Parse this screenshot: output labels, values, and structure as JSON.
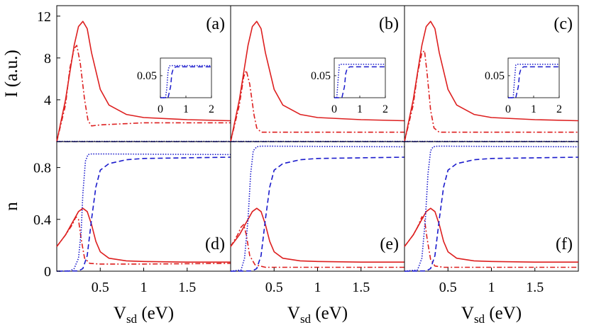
{
  "chart_data": [
    {
      "panel": "(a)",
      "type": "line",
      "ylabel": "I (a.u.)",
      "xlim": [
        0,
        2
      ],
      "ylim": [
        0,
        13
      ],
      "yticks": [
        "4",
        "8",
        "12"
      ],
      "series": [
        {
          "color": "#dd1f1f",
          "style": "solid",
          "x": [
            0,
            0.1,
            0.2,
            0.25,
            0.3,
            0.35,
            0.4,
            0.5,
            0.6,
            0.8,
            1.0,
            1.5,
            2.0
          ],
          "y": [
            0,
            4.0,
            9.2,
            11.0,
            11.5,
            10.8,
            8.5,
            5.0,
            3.5,
            2.6,
            2.3,
            2.1,
            2.0
          ]
        },
        {
          "color": "#dd1f1f",
          "style": "dash-dot",
          "x": [
            0,
            0.1,
            0.15,
            0.2,
            0.23,
            0.27,
            0.32,
            0.36,
            0.4,
            0.5,
            1.0,
            2.0
          ],
          "y": [
            0,
            3.5,
            7.0,
            8.9,
            9.2,
            7.5,
            4.0,
            2.0,
            1.5,
            1.6,
            1.8,
            1.8
          ]
        },
        {
          "color": "#1a1acc",
          "style": "dotted",
          "x": [
            0,
            2
          ],
          "y": [
            0.02,
            0.02
          ]
        },
        {
          "color": "#1a1acc",
          "style": "dashed",
          "x": [
            0,
            2
          ],
          "y": [
            0.0,
            0.0
          ]
        }
      ],
      "inset": {
        "xlim": [
          0,
          2
        ],
        "ylim": [
          0,
          0.09
        ],
        "xticks": [
          "0",
          "1",
          "2"
        ],
        "yticks": [
          "0.05"
        ],
        "series": [
          {
            "color": "#1a1acc",
            "style": "dotted",
            "x": [
              0,
              0.2,
              0.25,
              0.3,
              0.35,
              0.4,
              2.0
            ],
            "y": [
              0,
              0,
              0.02,
              0.06,
              0.072,
              0.073,
              0.073
            ]
          },
          {
            "color": "#1a1acc",
            "style": "dashed",
            "x": [
              0,
              0.3,
              0.4,
              0.45,
              0.5,
              0.6,
              2.0
            ],
            "y": [
              0,
              0,
              0.025,
              0.055,
              0.065,
              0.07,
              0.07
            ]
          }
        ]
      }
    },
    {
      "panel": "(b)",
      "type": "line",
      "xlim": [
        0,
        2
      ],
      "ylim": [
        0,
        13
      ],
      "series": [
        {
          "color": "#dd1f1f",
          "style": "solid",
          "x": [
            0,
            0.1,
            0.2,
            0.25,
            0.3,
            0.35,
            0.4,
            0.5,
            0.6,
            0.8,
            1.0,
            1.5,
            2.0
          ],
          "y": [
            0,
            4.0,
            9.2,
            11.0,
            11.5,
            10.8,
            8.5,
            5.0,
            3.5,
            2.6,
            2.3,
            2.1,
            2.0
          ]
        },
        {
          "color": "#dd1f1f",
          "style": "dash-dot",
          "x": [
            0,
            0.1,
            0.15,
            0.18,
            0.22,
            0.27,
            0.3,
            0.35,
            0.5,
            1.0,
            2.0
          ],
          "y": [
            0,
            3.5,
            6.2,
            6.8,
            5.5,
            2.5,
            1.3,
            0.9,
            0.9,
            0.9,
            0.9
          ]
        },
        {
          "color": "#1a1acc",
          "style": "dotted",
          "x": [
            0,
            2
          ],
          "y": [
            0.02,
            0.02
          ]
        },
        {
          "color": "#1a1acc",
          "style": "dashed",
          "x": [
            0,
            2
          ],
          "y": [
            0.0,
            0.0
          ]
        }
      ],
      "inset": {
        "xlim": [
          0,
          2
        ],
        "ylim": [
          0,
          0.09
        ],
        "xticks": [
          "0",
          "1",
          "2"
        ],
        "yticks": [
          "0.05"
        ],
        "series": [
          {
            "color": "#1a1acc",
            "style": "dotted",
            "x": [
              0,
              0.1,
              0.15,
              0.2,
              0.25,
              2.0
            ],
            "y": [
              0,
              0,
              0.04,
              0.075,
              0.076,
              0.076
            ]
          },
          {
            "color": "#1a1acc",
            "style": "dashed",
            "x": [
              0,
              0.3,
              0.4,
              0.45,
              0.5,
              0.6,
              2.0
            ],
            "y": [
              0,
              0,
              0.025,
              0.055,
              0.065,
              0.07,
              0.07
            ]
          }
        ]
      }
    },
    {
      "panel": "(c)",
      "type": "line",
      "xlim": [
        0,
        2
      ],
      "ylim": [
        0,
        13
      ],
      "series": [
        {
          "color": "#dd1f1f",
          "style": "solid",
          "x": [
            0,
            0.1,
            0.2,
            0.25,
            0.3,
            0.35,
            0.4,
            0.5,
            0.6,
            0.8,
            1.0,
            1.5,
            2.0
          ],
          "y": [
            0,
            4.0,
            9.2,
            11.0,
            11.5,
            10.8,
            8.5,
            5.0,
            3.5,
            2.6,
            2.3,
            2.1,
            2.0
          ]
        },
        {
          "color": "#dd1f1f",
          "style": "dash-dot",
          "x": [
            0,
            0.1,
            0.15,
            0.2,
            0.23,
            0.26,
            0.3,
            0.34,
            0.4,
            0.5,
            1.0,
            2.0
          ],
          "y": [
            0,
            3.5,
            6.5,
            8.5,
            8.7,
            6.5,
            3.0,
            1.3,
            0.9,
            0.9,
            0.9,
            0.9
          ]
        },
        {
          "color": "#1a1acc",
          "style": "dotted",
          "x": [
            0,
            2
          ],
          "y": [
            0.02,
            0.02
          ]
        },
        {
          "color": "#1a1acc",
          "style": "dashed",
          "x": [
            0,
            2
          ],
          "y": [
            0.0,
            0.0
          ]
        }
      ],
      "inset": {
        "xlim": [
          0,
          2
        ],
        "ylim": [
          0,
          0.09
        ],
        "xticks": [
          "0",
          "1",
          "2"
        ],
        "yticks": [
          "0.05"
        ],
        "series": [
          {
            "color": "#1a1acc",
            "style": "dotted",
            "x": [
              0,
              0.2,
              0.25,
              0.3,
              0.35,
              2.0
            ],
            "y": [
              0,
              0,
              0.04,
              0.074,
              0.076,
              0.076
            ]
          },
          {
            "color": "#1a1acc",
            "style": "dashed",
            "x": [
              0,
              0.3,
              0.4,
              0.45,
              0.5,
              0.6,
              2.0
            ],
            "y": [
              0,
              0,
              0.025,
              0.055,
              0.065,
              0.07,
              0.07
            ]
          }
        ]
      }
    },
    {
      "panel": "(d)",
      "type": "line",
      "xlabel": "V_sd (eV)",
      "ylabel": "n",
      "xlim": [
        0,
        2
      ],
      "ylim": [
        0,
        1.0
      ],
      "xticks": [
        "0.5",
        "1",
        "1.5"
      ],
      "yticks": [
        "0",
        "0.4",
        "0.8"
      ],
      "series": [
        {
          "color": "#dd1f1f",
          "style": "solid",
          "x": [
            0,
            0.1,
            0.2,
            0.25,
            0.3,
            0.35,
            0.4,
            0.45,
            0.5,
            0.6,
            0.8,
            1.0,
            1.5,
            2.0
          ],
          "y": [
            0.19,
            0.28,
            0.4,
            0.46,
            0.485,
            0.46,
            0.36,
            0.23,
            0.15,
            0.1,
            0.08,
            0.075,
            0.07,
            0.07
          ]
        },
        {
          "color": "#dd1f1f",
          "style": "dash-dot",
          "x": [
            0,
            0.1,
            0.18,
            0.22,
            0.25,
            0.28,
            0.32,
            0.38,
            0.5,
            1.0,
            2.0
          ],
          "y": [
            0.19,
            0.28,
            0.36,
            0.42,
            0.4,
            0.25,
            0.1,
            0.06,
            0.055,
            0.055,
            0.06
          ]
        },
        {
          "color": "#1a1acc",
          "style": "dotted",
          "x": [
            0,
            0.15,
            0.2,
            0.25,
            0.28,
            0.3,
            0.33,
            0.36,
            0.4,
            0.5,
            2.0
          ],
          "y": [
            0,
            0.002,
            0.02,
            0.1,
            0.3,
            0.6,
            0.85,
            0.9,
            0.905,
            0.905,
            0.9
          ]
        },
        {
          "color": "#1a1acc",
          "style": "dashed",
          "x": [
            0,
            0.25,
            0.3,
            0.35,
            0.4,
            0.45,
            0.5,
            0.6,
            0.8,
            1.0,
            1.5,
            2.0
          ],
          "y": [
            0,
            0.002,
            0.02,
            0.12,
            0.4,
            0.65,
            0.78,
            0.83,
            0.86,
            0.87,
            0.875,
            0.88
          ]
        }
      ]
    },
    {
      "panel": "(e)",
      "type": "line",
      "xlabel": "V_sd (eV)",
      "xlim": [
        0,
        2
      ],
      "ylim": [
        0,
        1.0
      ],
      "xticks": [
        "0.5",
        "1",
        "1.5"
      ],
      "series": [
        {
          "color": "#dd1f1f",
          "style": "solid",
          "x": [
            0,
            0.1,
            0.2,
            0.25,
            0.3,
            0.35,
            0.4,
            0.45,
            0.5,
            0.6,
            0.8,
            1.0,
            1.5,
            2.0
          ],
          "y": [
            0.19,
            0.28,
            0.4,
            0.46,
            0.485,
            0.46,
            0.36,
            0.23,
            0.15,
            0.1,
            0.08,
            0.075,
            0.07,
            0.07
          ]
        },
        {
          "color": "#dd1f1f",
          "style": "dash-dot",
          "x": [
            0,
            0.08,
            0.12,
            0.15,
            0.18,
            0.22,
            0.28,
            0.4,
            1.0,
            2.0
          ],
          "y": [
            0.19,
            0.28,
            0.34,
            0.36,
            0.28,
            0.12,
            0.05,
            0.03,
            0.03,
            0.03
          ]
        },
        {
          "color": "#1a1acc",
          "style": "dotted",
          "x": [
            0,
            0.12,
            0.16,
            0.2,
            0.23,
            0.26,
            0.3,
            0.35,
            2.0
          ],
          "y": [
            0,
            0.01,
            0.1,
            0.4,
            0.75,
            0.93,
            0.96,
            0.965,
            0.96
          ]
        },
        {
          "color": "#1a1acc",
          "style": "dashed",
          "x": [
            0,
            0.25,
            0.3,
            0.35,
            0.4,
            0.45,
            0.5,
            0.6,
            0.8,
            1.0,
            1.5,
            2.0
          ],
          "y": [
            0,
            0.002,
            0.02,
            0.12,
            0.4,
            0.65,
            0.78,
            0.83,
            0.86,
            0.87,
            0.875,
            0.88
          ]
        }
      ]
    },
    {
      "panel": "(f)",
      "type": "line",
      "xlabel": "V_sd (eV)",
      "xlim": [
        0,
        2
      ],
      "ylim": [
        0,
        1.0
      ],
      "xticks": [
        "0.5",
        "1",
        "1.5"
      ],
      "series": [
        {
          "color": "#dd1f1f",
          "style": "solid",
          "x": [
            0,
            0.1,
            0.2,
            0.25,
            0.3,
            0.35,
            0.4,
            0.45,
            0.5,
            0.6,
            0.8,
            1.0,
            1.5,
            2.0
          ],
          "y": [
            0.19,
            0.28,
            0.4,
            0.46,
            0.485,
            0.46,
            0.36,
            0.23,
            0.15,
            0.1,
            0.08,
            0.075,
            0.07,
            0.07
          ]
        },
        {
          "color": "#dd1f1f",
          "style": "dash-dot",
          "x": [
            0,
            0.1,
            0.15,
            0.2,
            0.23,
            0.26,
            0.3,
            0.35,
            0.45,
            1.0,
            2.0
          ],
          "y": [
            0.19,
            0.28,
            0.34,
            0.42,
            0.4,
            0.25,
            0.09,
            0.04,
            0.03,
            0.03,
            0.03
          ]
        },
        {
          "color": "#1a1acc",
          "style": "dotted",
          "x": [
            0,
            0.15,
            0.2,
            0.24,
            0.27,
            0.3,
            0.33,
            0.38,
            2.0
          ],
          "y": [
            0,
            0.01,
            0.1,
            0.4,
            0.75,
            0.93,
            0.96,
            0.965,
            0.96
          ]
        },
        {
          "color": "#1a1acc",
          "style": "dashed",
          "x": [
            0,
            0.25,
            0.3,
            0.35,
            0.4,
            0.45,
            0.5,
            0.6,
            0.8,
            1.0,
            1.5,
            2.0
          ],
          "y": [
            0,
            0.002,
            0.02,
            0.12,
            0.4,
            0.65,
            0.78,
            0.83,
            0.86,
            0.87,
            0.875,
            0.88
          ]
        }
      ]
    }
  ]
}
